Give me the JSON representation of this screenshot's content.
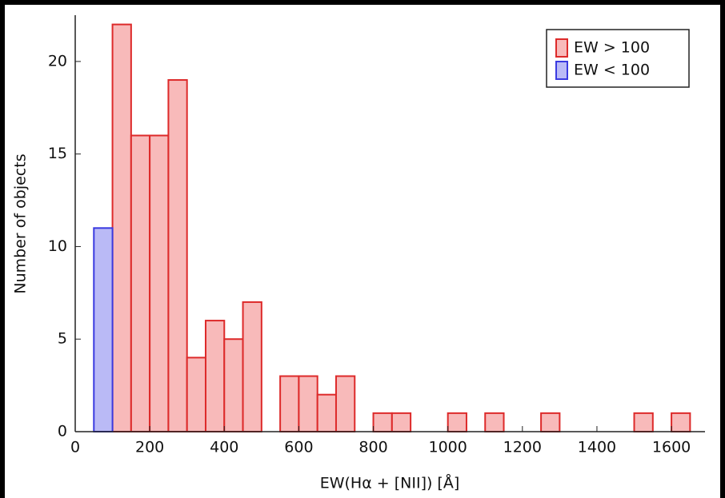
{
  "chart_data": {
    "type": "histogram",
    "xlabel": "EW(Hα + [NII]) [Å]",
    "ylabel": "Number of objects",
    "xlim": [
      0,
      1690
    ],
    "ylim": [
      0,
      22.5
    ],
    "xticks": [
      0,
      200,
      400,
      600,
      800,
      1000,
      1200,
      1400,
      1600
    ],
    "yticks": [
      0,
      5,
      10,
      15,
      20
    ],
    "legend": "upper right",
    "series": [
      {
        "name": "EW > 100",
        "color": "#dd2a2a",
        "fill": "#f8baba",
        "bins": [
          100,
          150,
          200,
          250,
          300,
          350,
          400,
          450,
          500,
          550,
          600,
          650,
          700,
          750,
          800,
          850,
          900,
          950,
          1000,
          1050,
          1100,
          1150,
          1200,
          1250,
          1300,
          1350,
          1400,
          1450,
          1500,
          1550,
          1600,
          1650
        ],
        "counts": [
          22,
          16,
          16,
          19,
          4,
          6,
          5,
          7,
          0,
          3,
          3,
          2,
          3,
          0,
          1,
          1,
          0,
          0,
          1,
          0,
          1,
          0,
          0,
          1,
          0,
          0,
          0,
          0,
          1,
          0,
          1
        ]
      },
      {
        "name": "EW < 100",
        "color": "#3a3ae0",
        "fill": "#babaf6",
        "bins": [
          50,
          100
        ],
        "counts": [
          11
        ]
      }
    ]
  }
}
